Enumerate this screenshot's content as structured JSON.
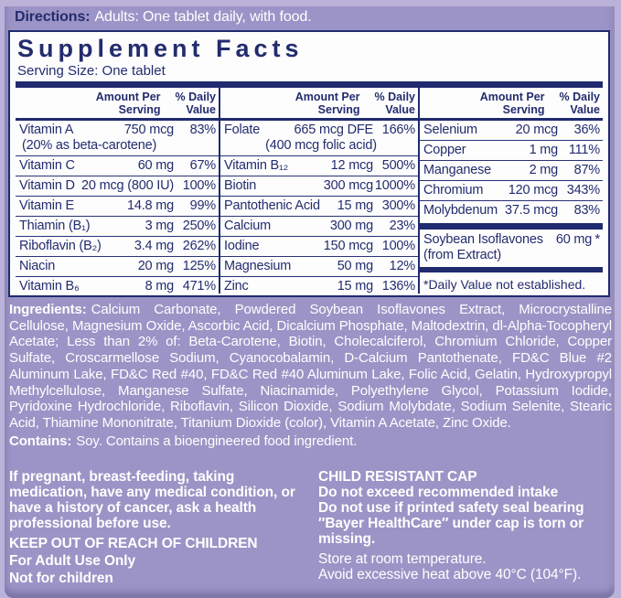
{
  "brand_colors": {
    "navy": "#1f2b6e",
    "purple": "#9c94c6",
    "light_purple": "#bab2d9",
    "white": "#ffffff"
  },
  "directions": {
    "label": "Directions:",
    "text": "Adults: One tablet daily, with food."
  },
  "supplement": {
    "title": "Supplement Facts",
    "serving_size": "Serving Size: One tablet",
    "col_headers": {
      "amount": "Amount Per\nServing",
      "dv": "% Daily\nValue"
    },
    "columns": [
      {
        "rows": [
          {
            "name": "Vitamin A",
            "amount": "750 mcg",
            "dv": "83%",
            "note": "(20% as beta-carotene)"
          },
          {
            "name": "Vitamin C",
            "amount": "60 mg",
            "dv": "67%"
          },
          {
            "name": "Vitamin D",
            "amount": "20 mcg (800 IU)",
            "dv": "100%"
          },
          {
            "name": "Vitamin E",
            "amount": "14.8 mg",
            "dv": "99%"
          },
          {
            "name": "Thiamin (B₁)",
            "amount": "3 mg",
            "dv": "250%"
          },
          {
            "name": "Riboflavin (B₂)",
            "amount": "3.4 mg",
            "dv": "262%"
          },
          {
            "name": "Niacin",
            "amount": "20 mg",
            "dv": "125%"
          },
          {
            "name": "Vitamin B₆",
            "amount": "8 mg",
            "dv": "471%"
          }
        ]
      },
      {
        "rows": [
          {
            "name": "Folate",
            "amount": "665 mcg DFE",
            "dv": "166%",
            "note": "(400 mcg folic acid)"
          },
          {
            "name": "Vitamin B₁₂",
            "amount": "12 mcg",
            "dv": "500%"
          },
          {
            "name": "Biotin",
            "amount": "300 mcg",
            "dv": "1000%"
          },
          {
            "name": "Pantothenic Acid",
            "amount": "15 mg",
            "dv": "300%"
          },
          {
            "name": "Calcium",
            "amount": "300 mg",
            "dv": "23%"
          },
          {
            "name": "Iodine",
            "amount": "150 mcg",
            "dv": "100%"
          },
          {
            "name": "Magnesium",
            "amount": "50 mg",
            "dv": "12%"
          },
          {
            "name": "Zinc",
            "amount": "15 mg",
            "dv": "136%"
          }
        ]
      },
      {
        "rows": [
          {
            "name": "Selenium",
            "amount": "20 mcg",
            "dv": "36%"
          },
          {
            "name": "Copper",
            "amount": "1 mg",
            "dv": "111%"
          },
          {
            "name": "Manganese",
            "amount": "2 mg",
            "dv": "87%"
          },
          {
            "name": "Chromium",
            "amount": "120 mcg",
            "dv": "343%"
          },
          {
            "name": "Molybdenum",
            "amount": "37.5 mcg",
            "dv": "83%"
          }
        ],
        "footer": {
          "name": "Soybean Isoflavones",
          "amount": "60 mg",
          "dv": "*",
          "note": "(from Extract)",
          "footnote": "*Daily Value not established."
        }
      }
    ]
  },
  "ingredients": {
    "label": "Ingredients:",
    "text": "Calcium Carbonate, Powdered Soybean Isoflavones Extract, Microcrystalline Cellulose, Magnesium Oxide, Ascorbic Acid, Dicalcium Phosphate, Maltodextrin, dl-Alpha-Tocopheryl Acetate; Less than 2% of: Beta-Carotene, Biotin, Cholecalciferol, Chromium Chloride, Copper Sulfate, Croscarmellose Sodium, Cyanocobalamin, D-Calcium Pantothenate, FD&C Blue #2 Aluminum Lake, FD&C Red #40, FD&C Red #40 Aluminum Lake, Folic Acid, Gelatin, Hydroxypropyl Methylcellulose, Manganese Sulfate, Niacinamide, Polyethylene Glycol, Potassium Iodide, Pyridoxine Hydrochloride, Riboflavin, Silicon Dioxide, Sodium Molybdate, Sodium Selenite, Stearic Acid, Thiamine Mononitrate, Titanium Dioxide (color), Vitamin A Acetate, Zinc Oxide."
  },
  "contains": {
    "label": "Contains:",
    "text": "Soy.  Contains a bioengineered food ingredient."
  },
  "warnings_left": {
    "pregnancy": "If pregnant, breast-feeding, taking medication, have any medical condition, or have a history of cancer, ask a health professional before use.",
    "keep_out": "KEEP OUT OF REACH OF CHILDREN",
    "adult_only": "For Adult Use Only",
    "not_children": "Not for children"
  },
  "warnings_right": {
    "cap": "CHILD RESISTANT CAP",
    "intake": "Do not exceed recommended intake",
    "seal": "Do not use if printed safety seal bearing ″Bayer HealthCare″ under cap is torn or missing.",
    "store": "Store at room temperature.",
    "heat": "Avoid excessive heat above 40°C (104°F)."
  }
}
